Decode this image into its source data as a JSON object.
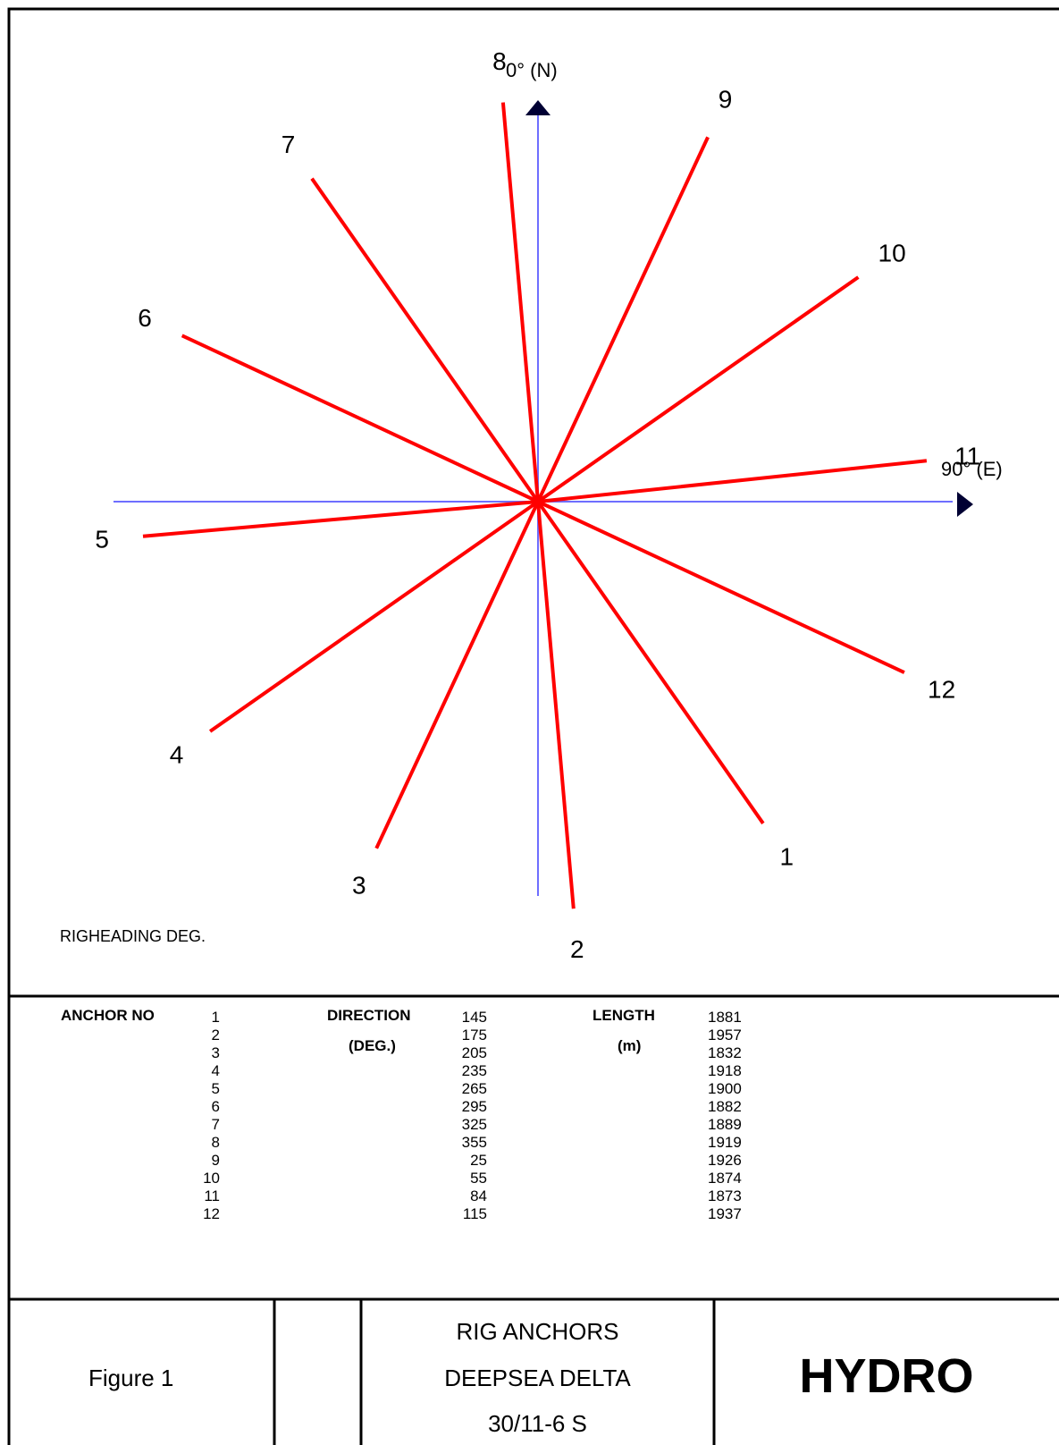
{
  "diagram": {
    "north_label": "0° (N)",
    "east_label": "90° (E)",
    "rig_heading_label": "RIGHEADING  DEG.",
    "colors": {
      "anchor_line": "#ff0000",
      "axis": "#6e6eff",
      "arrow": "#000033",
      "border": "#000000"
    }
  },
  "anchors": [
    {
      "no": "1",
      "direction": 145,
      "length": 1881
    },
    {
      "no": "2",
      "direction": 175,
      "length": 1957
    },
    {
      "no": "3",
      "direction": 205,
      "length": 1832
    },
    {
      "no": "4",
      "direction": 235,
      "length": 1918
    },
    {
      "no": "5",
      "direction": 265,
      "length": 1900
    },
    {
      "no": "6",
      "direction": 295,
      "length": 1882
    },
    {
      "no": "7",
      "direction": 325,
      "length": 1889
    },
    {
      "no": "8",
      "direction": 355,
      "length": 1919
    },
    {
      "no": "9",
      "direction": 25,
      "length": 1926
    },
    {
      "no": "10",
      "direction": 55,
      "length": 1874
    },
    {
      "no": "11",
      "direction": 84,
      "length": 1873
    },
    {
      "no": "12",
      "direction": 115,
      "length": 1937
    }
  ],
  "table": {
    "anchor_no_header": "ANCHOR NO",
    "direction_header": "DIRECTION",
    "direction_unit": "(DEG.)",
    "length_header": "LENGTH",
    "length_unit": "(m)"
  },
  "title_block": {
    "figure": "Figure 1",
    "title_line1": "RIG ANCHORS",
    "title_line2": "DEEPSEA DELTA",
    "title_line3": "30/11-6 S",
    "company": "HYDRO"
  }
}
